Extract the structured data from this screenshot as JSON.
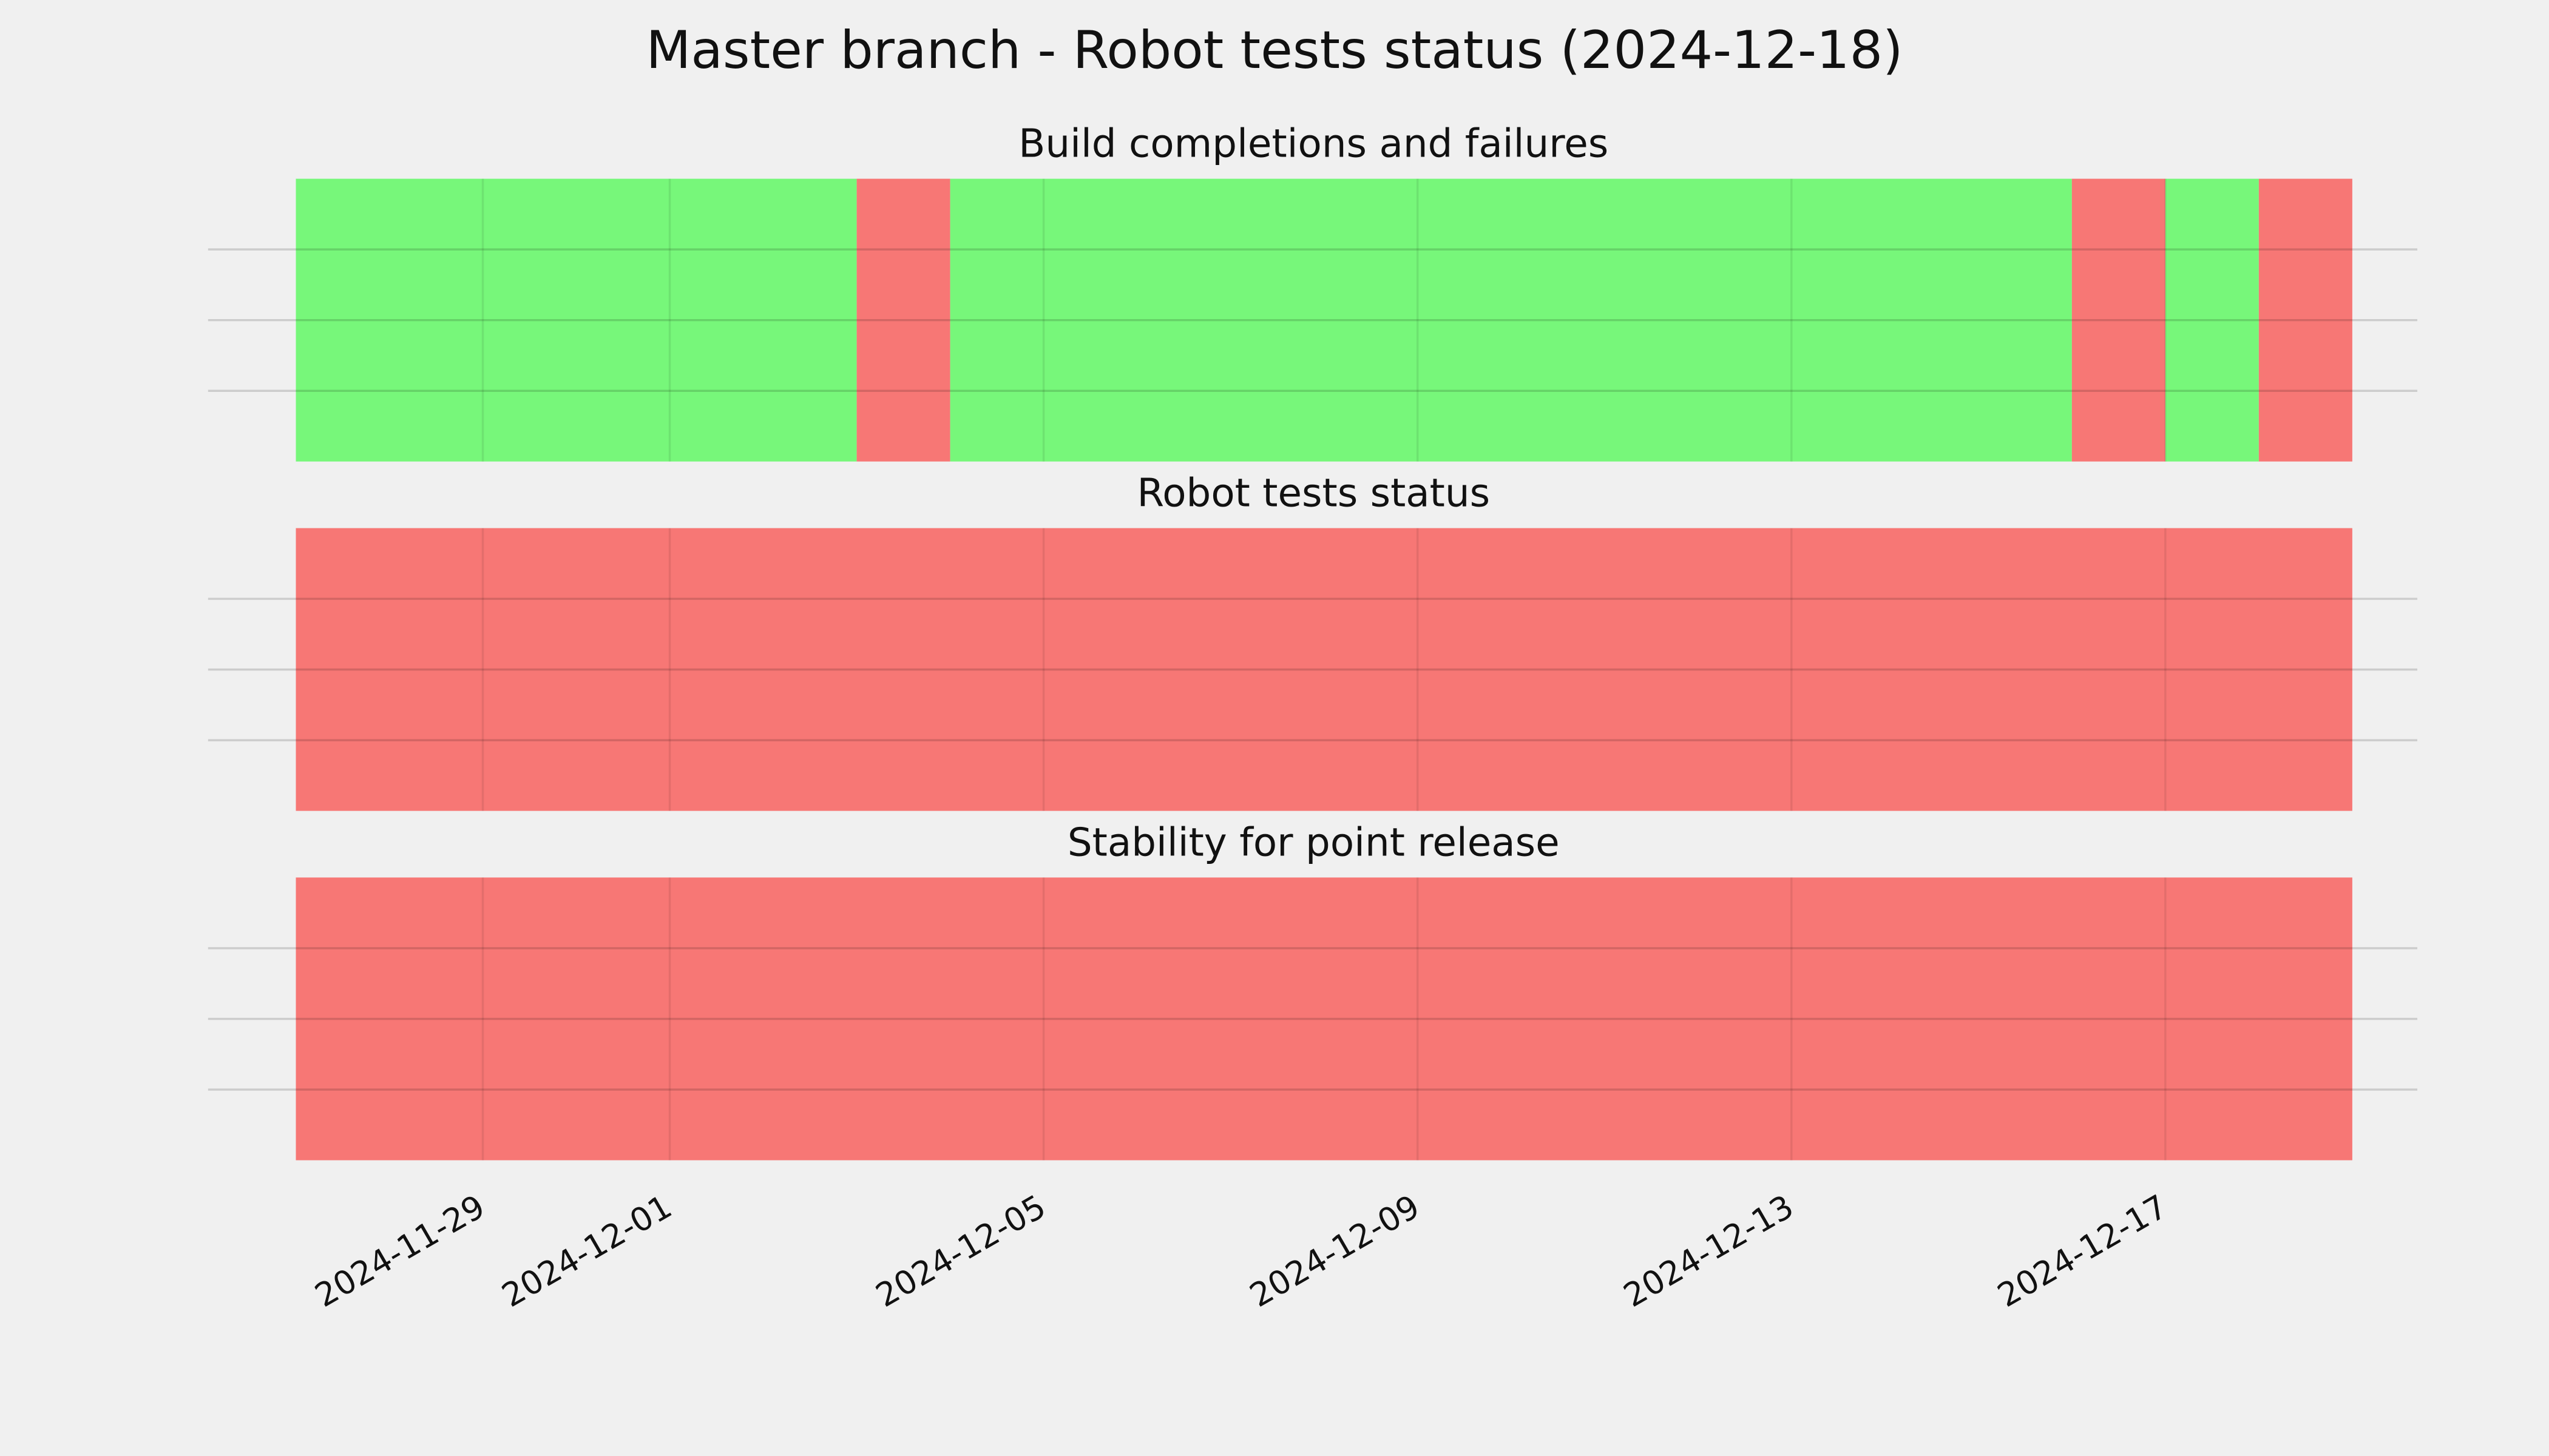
{
  "chart_data": {
    "type": "timeline",
    "title": "Master branch - Robot tests status (2024-12-18)",
    "xlim": [
      "2024-11-26",
      "2024-12-20"
    ],
    "xticks": [
      "2024-11-29",
      "2024-12-01",
      "2024-12-05",
      "2024-12-09",
      "2024-12-13",
      "2024-12-17"
    ],
    "ylim": [
      0,
      1
    ],
    "yticks": [
      0.25,
      0.5,
      0.75
    ],
    "grid": true,
    "panels": [
      {
        "title": "Build completions and failures",
        "segments": [
          {
            "start": "2024-11-27",
            "end": "2024-12-03",
            "color": "#77f77a"
          },
          {
            "start": "2024-12-03",
            "end": "2024-12-04",
            "color": "#f77775"
          },
          {
            "start": "2024-12-04",
            "end": "2024-12-16",
            "color": "#77f77a"
          },
          {
            "start": "2024-12-16",
            "end": "2024-12-17",
            "color": "#f77775"
          },
          {
            "start": "2024-12-17",
            "end": "2024-12-18",
            "color": "#77f77a"
          },
          {
            "start": "2024-12-18",
            "end": "2024-12-19",
            "color": "#f77775"
          }
        ]
      },
      {
        "title": "Robot tests status",
        "segments": [
          {
            "start": "2024-11-27",
            "end": "2024-12-19",
            "color": "#f77775"
          }
        ]
      },
      {
        "title": "Stability for point release",
        "segments": [
          {
            "start": "2024-11-27",
            "end": "2024-12-19",
            "color": "#f77775"
          }
        ]
      }
    ]
  }
}
